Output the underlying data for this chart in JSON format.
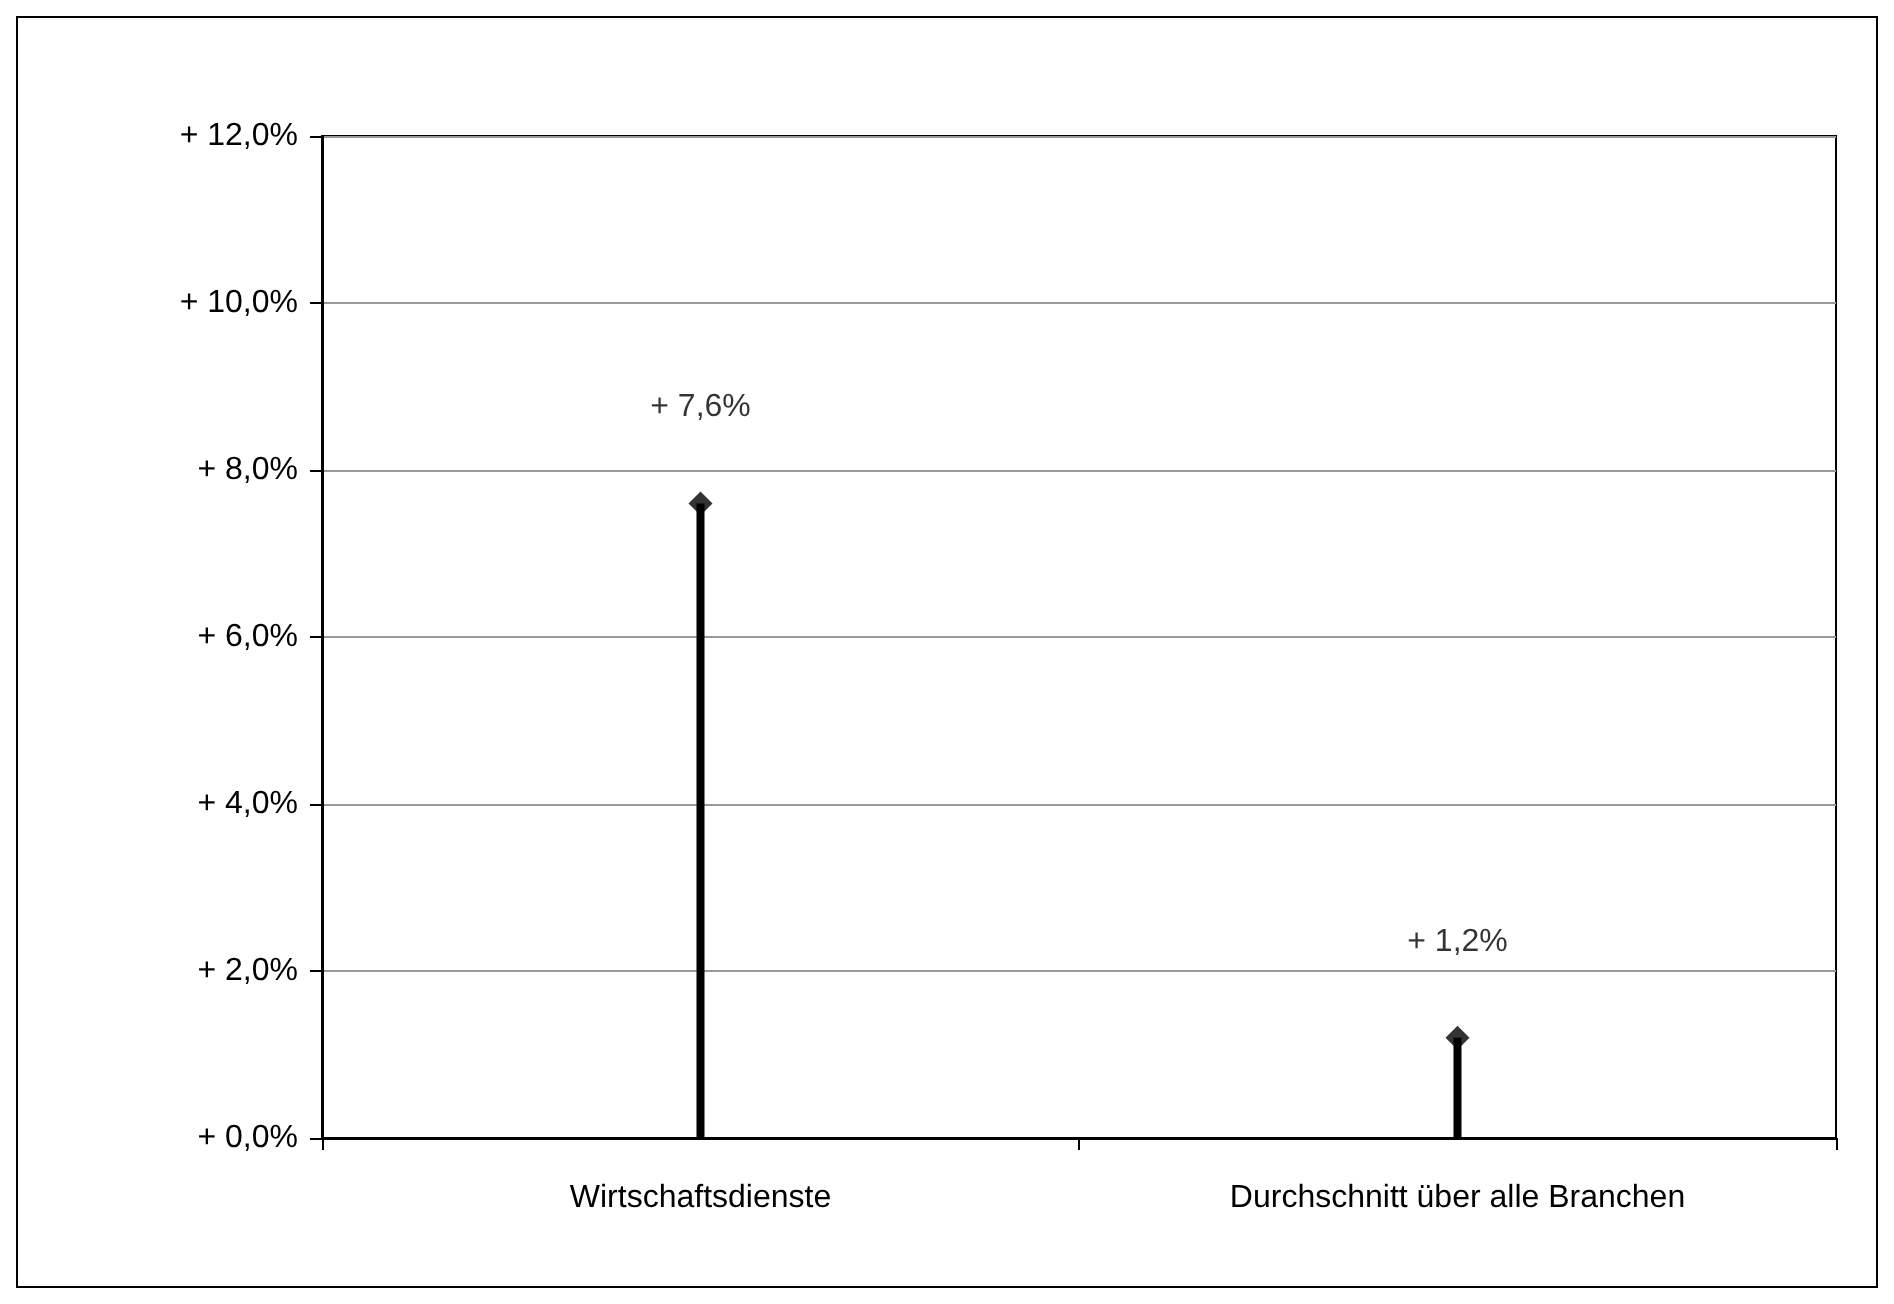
{
  "chart_data": {
    "type": "lollipop",
    "categories": [
      "Wirtschaftsdienste",
      "Durchschnitt über alle Branchen"
    ],
    "values": [
      7.6,
      1.2
    ],
    "value_labels": [
      "+ 7,6%",
      "+ 1,2%"
    ],
    "color": "#000000",
    "marker": "diamond",
    "ylim": [
      0,
      12
    ],
    "yticks": [
      {
        "value": 0,
        "label": "+ 0,0%"
      },
      {
        "value": 2,
        "label": "+ 2,0%"
      },
      {
        "value": 4,
        "label": "+ 4,0%"
      },
      {
        "value": 6,
        "label": "+ 6,0%"
      },
      {
        "value": 8,
        "label": "+ 8,0%"
      },
      {
        "value": 10,
        "label": "+ 10,0%"
      },
      {
        "value": 12,
        "label": "+ 12,0%"
      }
    ],
    "grid": "y"
  }
}
